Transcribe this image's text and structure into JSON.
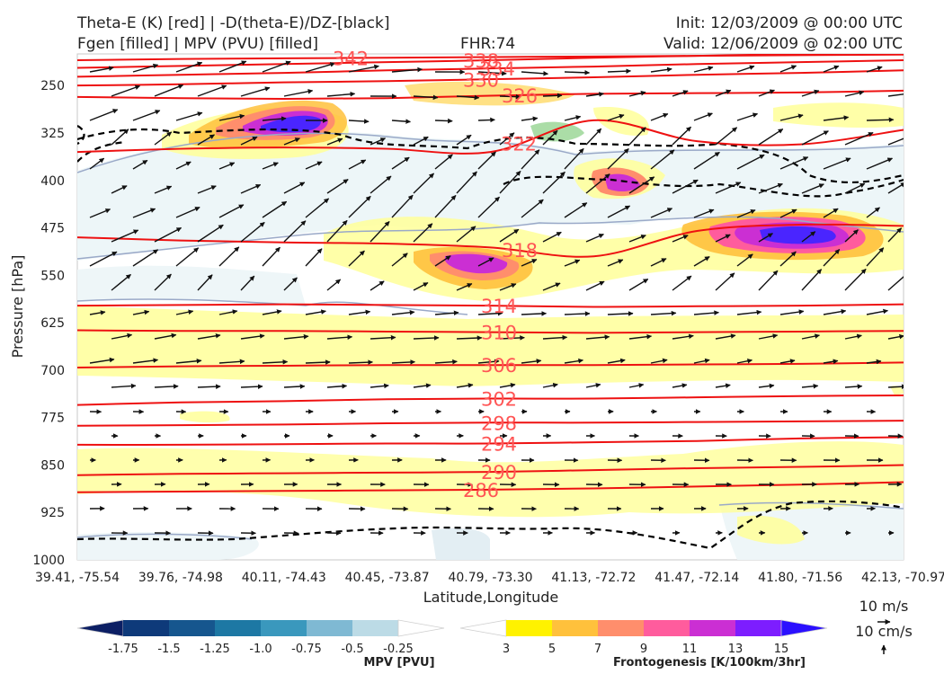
{
  "title": {
    "line1_left": "Theta-E (K) [red] | -D(theta-E)/DZ-[black]",
    "line2_left": "Fgen [filled] | MPV (PVU) [filled]",
    "fhr": "FHR:74",
    "init": "Init: 12/03/2009 @ 00:00 UTC",
    "valid": "Valid: 12/06/2009 @ 02:00 UTC"
  },
  "chart_data": {
    "type": "cross-section",
    "xlabel": "Latitude,Longitude",
    "ylabel": "Pressure [hPa]",
    "xticks": [
      "39.41, -75.54",
      "39.76, -74.98",
      "40.11, -74.43",
      "40.45, -73.87",
      "40.79, -73.30",
      "41.13, -72.72",
      "41.47, -72.14",
      "41.80, -71.56",
      "42.13, -70.97"
    ],
    "yticks": [
      250,
      325,
      400,
      475,
      550,
      625,
      700,
      775,
      850,
      925,
      1000
    ],
    "ylim": [
      1000,
      200
    ],
    "theta_e_contours": [
      {
        "label": "342",
        "values": [
          210,
          208,
          207,
          206,
          205,
          204,
          203,
          202,
          201
        ]
      },
      {
        "label": "338",
        "values": [
          222,
          219,
          216,
          213,
          210,
          206,
          203,
          200,
          198
        ]
      },
      {
        "label": "334",
        "values": [
          236,
          233,
          230,
          226,
          223,
          220,
          216,
          213,
          210
        ]
      },
      {
        "label": "330",
        "values": [
          250,
          248,
          245,
          243,
          240,
          237,
          233,
          230,
          226
        ]
      },
      {
        "label": "326",
        "values": [
          268,
          270,
          271,
          270,
          266,
          263,
          262,
          261,
          258
        ]
      },
      {
        "label": "322",
        "values": [
          355,
          350,
          348,
          350,
          355,
          305,
          338,
          343,
          320
        ]
      },
      {
        "label": "318",
        "values": [
          490,
          495,
          498,
          500,
          506,
          520,
          480,
          470,
          472
        ]
      },
      {
        "label": "314",
        "values": [
          598,
          597,
          596,
          597,
          598,
          600,
          599,
          598,
          596
        ]
      },
      {
        "label": "310",
        "values": [
          637,
          638,
          638,
          639,
          640,
          641,
          640,
          639,
          638
        ]
      },
      {
        "label": "306",
        "values": [
          696,
          694,
          693,
          692,
          692,
          692,
          691,
          690,
          688
        ]
      },
      {
        "label": "302",
        "values": [
          755,
          751,
          749,
          746,
          745,
          745,
          743,
          741,
          740
        ]
      },
      {
        "label": "298",
        "values": [
          788,
          787,
          786,
          784,
          783,
          783,
          782,
          781,
          780
        ]
      },
      {
        "label": "294",
        "values": [
          818,
          818,
          817,
          816,
          816,
          814,
          812,
          808,
          806
        ]
      },
      {
        "label": "290",
        "values": [
          866,
          864,
          863,
          862,
          861,
          858,
          855,
          853,
          850
        ]
      },
      {
        "label": "286",
        "values": [
          893,
          892,
          891,
          890,
          889,
          887,
          884,
          881,
          877
        ]
      }
    ],
    "mpv_colorbar": {
      "title": "MPV [PVU]",
      "levels": [
        "-1.75",
        "-1.5",
        "-1.25",
        "-1.0",
        "-0.75",
        "-0.5",
        "-0.25"
      ],
      "colors": [
        "#0c1f64",
        "#0e3a7a",
        "#16568e",
        "#1d78a4",
        "#3a98bd",
        "#7fb9d3",
        "#bcdbe6",
        "#ffffff"
      ]
    },
    "fgen_colorbar": {
      "title": "Frontogenesis [K/100km/3hr]",
      "levels": [
        "3",
        "5",
        "7",
        "9",
        "11",
        "13",
        "15"
      ],
      "colors": [
        "#ffffff",
        "#fff200",
        "#ffc13c",
        "#ff8e6c",
        "#ff5c9d",
        "#cb2fd3",
        "#7d1dff",
        "#2b10ff"
      ]
    },
    "vector_keys": [
      "10 m/s",
      "10 cm/s"
    ]
  }
}
